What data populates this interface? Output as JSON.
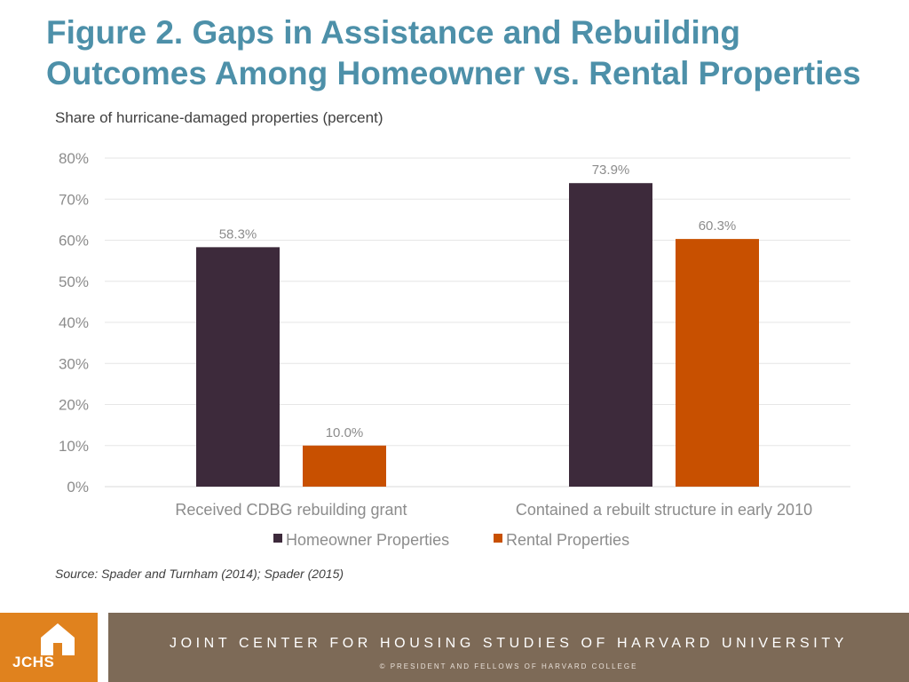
{
  "title": {
    "line1": "Figure 2. Gaps in Assistance and Rebuilding",
    "line2": "Outcomes Among Homeowner vs. Rental Properties"
  },
  "chart_data": {
    "type": "bar",
    "title": "",
    "ylabel": "Share of hurricane-damaged properties (percent)",
    "xlabel": "",
    "categories": [
      "Received CDBG rebuilding grant",
      "Contained a rebuilt structure in early 2010"
    ],
    "series": [
      {
        "name": "Homeowner Properties",
        "values": [
          58.3,
          73.9
        ],
        "labels": [
          "58.3%",
          "73.9%"
        ],
        "color": "#3d2a3b"
      },
      {
        "name": "Rental Properties",
        "values": [
          10.0,
          60.3
        ],
        "labels": [
          "10.0%",
          "60.3%"
        ],
        "color": "#c85000"
      }
    ],
    "ylim": [
      0,
      80
    ],
    "yticks": [
      0,
      10,
      20,
      30,
      40,
      50,
      60,
      70,
      80
    ],
    "ytick_labels": [
      "0%",
      "10%",
      "20%",
      "30%",
      "40%",
      "50%",
      "60%",
      "70%",
      "80%"
    ],
    "grid": true,
    "legend": "bottom"
  },
  "source": "Source: Spader and Turnham (2014); Spader (2015)",
  "footer": {
    "logo_text": "JCHS",
    "logo_icon": "house-icon",
    "banner_text": "JOINT CENTER FOR HOUSING STUDIES OF HARVARD UNIVERSITY",
    "copyright": "© PRESIDENT AND FELLOWS OF HARVARD COLLEGE",
    "logo_color": "#e0821e",
    "banner_color": "#7d6a57"
  }
}
